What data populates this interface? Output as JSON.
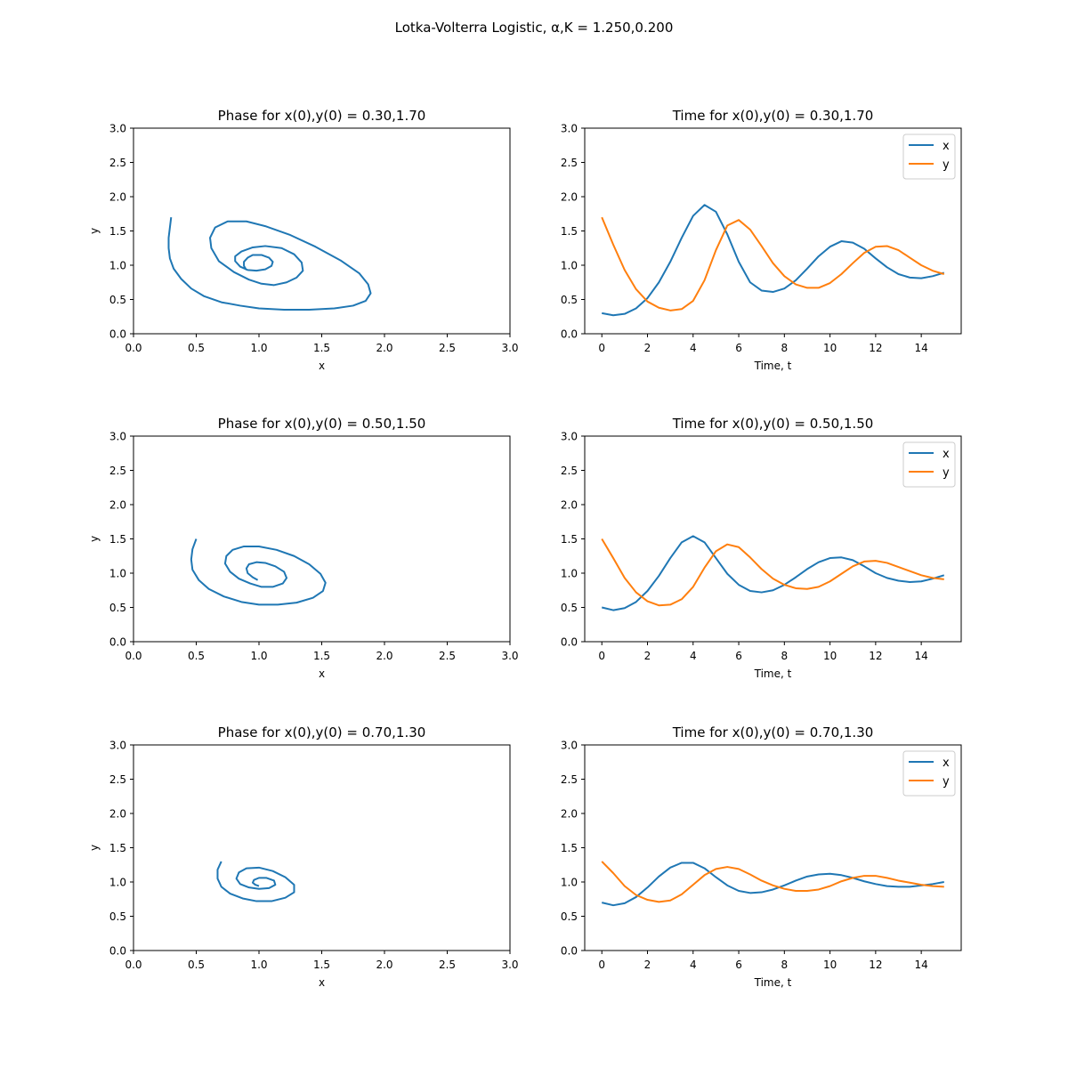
{
  "figure": {
    "suptitle": "Lotka-Volterra Logistic, α,K = 1.250,0.200",
    "colors": {
      "x": "#1f77b4",
      "y": "#ff7f0e"
    }
  },
  "chart_data": [
    {
      "type": "line",
      "title": "Phase for x(0),y(0) = 0.30,1.70",
      "xlabel": "x",
      "ylabel": "y",
      "xlim": [
        0,
        3
      ],
      "ylim": [
        0,
        3
      ],
      "xticks": [
        "0.0",
        "0.5",
        "1.0",
        "1.5",
        "2.0",
        "2.5",
        "3.0"
      ],
      "yticks": [
        "0.0",
        "0.5",
        "1.0",
        "1.5",
        "2.0",
        "2.5",
        "3.0"
      ],
      "grid": false,
      "series": [
        {
          "color": "#1f77b4",
          "x": [
            0.3,
            0.29,
            0.28,
            0.28,
            0.29,
            0.32,
            0.38,
            0.46,
            0.56,
            0.7,
            0.85,
            1.0,
            1.2,
            1.4,
            1.6,
            1.75,
            1.85,
            1.89,
            1.87,
            1.8,
            1.65,
            1.45,
            1.25,
            1.05,
            0.9,
            0.75,
            0.65,
            0.61,
            0.62,
            0.68,
            0.8,
            0.92,
            1.02,
            1.12,
            1.22,
            1.3,
            1.35,
            1.34,
            1.28,
            1.18,
            1.05,
            0.95,
            0.86,
            0.81,
            0.81,
            0.85,
            0.91,
            0.98,
            1.05,
            1.1,
            1.11,
            1.08,
            1.02,
            0.95,
            0.91,
            0.88,
            0.88,
            0.9
          ],
          "y": [
            1.7,
            1.55,
            1.4,
            1.25,
            1.1,
            0.95,
            0.8,
            0.66,
            0.55,
            0.46,
            0.41,
            0.37,
            0.35,
            0.35,
            0.37,
            0.41,
            0.48,
            0.59,
            0.72,
            0.88,
            1.07,
            1.27,
            1.44,
            1.57,
            1.64,
            1.64,
            1.55,
            1.4,
            1.25,
            1.06,
            0.9,
            0.79,
            0.73,
            0.71,
            0.75,
            0.82,
            0.92,
            1.04,
            1.16,
            1.25,
            1.28,
            1.26,
            1.2,
            1.13,
            1.06,
            0.98,
            0.93,
            0.92,
            0.94,
            0.99,
            1.05,
            1.11,
            1.15,
            1.15,
            1.11,
            1.05,
            0.99,
            0.93
          ]
        }
      ]
    },
    {
      "type": "line",
      "title": "Time for x(0),y(0) = 0.30,1.70",
      "xlabel": "Time, t",
      "ylabel": "",
      "xlim": [
        -0.75,
        15.75
      ],
      "ylim": [
        0,
        3
      ],
      "xticks": [
        "0",
        "2",
        "4",
        "6",
        "8",
        "10",
        "12",
        "14"
      ],
      "yticks": [
        "0.0",
        "0.5",
        "1.0",
        "1.5",
        "2.0",
        "2.5",
        "3.0"
      ],
      "grid": false,
      "legend": "top-right",
      "series": [
        {
          "name": "x",
          "color": "#1f77b4",
          "x": [
            0,
            0.5,
            1,
            1.5,
            2,
            2.5,
            3,
            3.5,
            4,
            4.5,
            5,
            5.5,
            6,
            6.5,
            7,
            7.5,
            8,
            8.5,
            9,
            9.5,
            10,
            10.5,
            11,
            11.5,
            12,
            12.5,
            13,
            13.5,
            14,
            14.5,
            15
          ],
          "y": [
            0.3,
            0.27,
            0.29,
            0.37,
            0.52,
            0.75,
            1.05,
            1.4,
            1.72,
            1.88,
            1.78,
            1.45,
            1.05,
            0.75,
            0.63,
            0.61,
            0.66,
            0.78,
            0.95,
            1.13,
            1.27,
            1.35,
            1.33,
            1.24,
            1.1,
            0.97,
            0.87,
            0.82,
            0.81,
            0.84,
            0.89
          ]
        },
        {
          "name": "y",
          "color": "#ff7f0e",
          "x": [
            0,
            0.5,
            1,
            1.5,
            2,
            2.5,
            3,
            3.5,
            4,
            4.5,
            5,
            5.5,
            6,
            6.5,
            7,
            7.5,
            8,
            8.5,
            9,
            9.5,
            10,
            10.5,
            11,
            11.5,
            12,
            12.5,
            13,
            13.5,
            14,
            14.5,
            15
          ],
          "y": [
            1.7,
            1.3,
            0.93,
            0.65,
            0.47,
            0.38,
            0.34,
            0.36,
            0.48,
            0.78,
            1.22,
            1.58,
            1.66,
            1.52,
            1.28,
            1.03,
            0.84,
            0.72,
            0.67,
            0.67,
            0.74,
            0.87,
            1.03,
            1.18,
            1.27,
            1.28,
            1.22,
            1.11,
            1.0,
            0.92,
            0.87
          ]
        }
      ]
    },
    {
      "type": "line",
      "title": "Phase for x(0),y(0) = 0.50,1.50",
      "xlabel": "x",
      "ylabel": "y",
      "xlim": [
        0,
        3
      ],
      "ylim": [
        0,
        3
      ],
      "xticks": [
        "0.0",
        "0.5",
        "1.0",
        "1.5",
        "2.0",
        "2.5",
        "3.0"
      ],
      "yticks": [
        "0.0",
        "0.5",
        "1.0",
        "1.5",
        "2.0",
        "2.5",
        "3.0"
      ],
      "grid": false,
      "series": [
        {
          "color": "#1f77b4",
          "x": [
            0.5,
            0.47,
            0.46,
            0.47,
            0.52,
            0.6,
            0.72,
            0.86,
            1.0,
            1.15,
            1.3,
            1.43,
            1.51,
            1.53,
            1.49,
            1.4,
            1.28,
            1.14,
            1.0,
            0.88,
            0.79,
            0.74,
            0.73,
            0.77,
            0.84,
            0.93,
            1.02,
            1.11,
            1.19,
            1.22,
            1.2,
            1.13,
            1.05,
            0.98,
            0.92,
            0.9,
            0.91,
            0.95,
            0.99
          ],
          "y": [
            1.5,
            1.35,
            1.2,
            1.05,
            0.9,
            0.77,
            0.66,
            0.58,
            0.54,
            0.54,
            0.57,
            0.64,
            0.74,
            0.86,
            0.99,
            1.13,
            1.25,
            1.34,
            1.39,
            1.39,
            1.34,
            1.25,
            1.14,
            1.02,
            0.92,
            0.85,
            0.8,
            0.8,
            0.85,
            0.93,
            1.02,
            1.1,
            1.15,
            1.16,
            1.13,
            1.07,
            1.0,
            0.94,
            0.9
          ]
        }
      ]
    },
    {
      "type": "line",
      "title": "Time for x(0),y(0) = 0.50,1.50",
      "xlabel": "Time, t",
      "ylabel": "",
      "xlim": [
        -0.75,
        15.75
      ],
      "ylim": [
        0,
        3
      ],
      "xticks": [
        "0",
        "2",
        "4",
        "6",
        "8",
        "10",
        "12",
        "14"
      ],
      "yticks": [
        "0.0",
        "0.5",
        "1.0",
        "1.5",
        "2.0",
        "2.5",
        "3.0"
      ],
      "grid": false,
      "legend": "top-right",
      "series": [
        {
          "name": "x",
          "color": "#1f77b4",
          "x": [
            0,
            0.5,
            1,
            1.5,
            2,
            2.5,
            3,
            3.5,
            4,
            4.5,
            5,
            5.5,
            6,
            6.5,
            7,
            7.5,
            8,
            8.5,
            9,
            9.5,
            10,
            10.5,
            11,
            11.5,
            12,
            12.5,
            13,
            13.5,
            14,
            14.5,
            15
          ],
          "y": [
            0.5,
            0.46,
            0.49,
            0.58,
            0.74,
            0.96,
            1.22,
            1.45,
            1.54,
            1.45,
            1.22,
            0.99,
            0.83,
            0.74,
            0.72,
            0.75,
            0.83,
            0.94,
            1.06,
            1.16,
            1.22,
            1.23,
            1.19,
            1.1,
            1.0,
            0.93,
            0.89,
            0.87,
            0.88,
            0.92,
            0.97
          ]
        },
        {
          "name": "y",
          "color": "#ff7f0e",
          "x": [
            0,
            0.5,
            1,
            1.5,
            2,
            2.5,
            3,
            3.5,
            4,
            4.5,
            5,
            5.5,
            6,
            6.5,
            7,
            7.5,
            8,
            8.5,
            9,
            9.5,
            10,
            10.5,
            11,
            11.5,
            12,
            12.5,
            13,
            13.5,
            14,
            14.5,
            15
          ],
          "y": [
            1.5,
            1.22,
            0.93,
            0.72,
            0.59,
            0.53,
            0.54,
            0.62,
            0.8,
            1.08,
            1.32,
            1.42,
            1.38,
            1.23,
            1.06,
            0.92,
            0.83,
            0.78,
            0.77,
            0.8,
            0.88,
            0.99,
            1.1,
            1.17,
            1.18,
            1.15,
            1.09,
            1.03,
            0.97,
            0.93,
            0.91
          ]
        }
      ]
    },
    {
      "type": "line",
      "title": "Phase for x(0),y(0) = 0.70,1.30",
      "xlabel": "x",
      "ylabel": "y",
      "xlim": [
        0,
        3
      ],
      "ylim": [
        0,
        3
      ],
      "xticks": [
        "0.0",
        "0.5",
        "1.0",
        "1.5",
        "2.0",
        "2.5",
        "3.0"
      ],
      "yticks": [
        "0.0",
        "0.5",
        "1.0",
        "1.5",
        "2.0",
        "2.5",
        "3.0"
      ],
      "grid": false,
      "series": [
        {
          "color": "#1f77b4",
          "x": [
            0.7,
            0.67,
            0.67,
            0.7,
            0.77,
            0.87,
            0.98,
            1.1,
            1.21,
            1.28,
            1.28,
            1.21,
            1.11,
            1.0,
            0.9,
            0.84,
            0.82,
            0.85,
            0.92,
            1.0,
            1.08,
            1.13,
            1.12,
            1.06,
            1.0,
            0.96,
            0.95,
            0.97,
            1.0
          ],
          "y": [
            1.3,
            1.18,
            1.05,
            0.93,
            0.83,
            0.76,
            0.72,
            0.72,
            0.77,
            0.85,
            0.96,
            1.07,
            1.16,
            1.21,
            1.2,
            1.14,
            1.05,
            0.97,
            0.92,
            0.9,
            0.91,
            0.96,
            1.02,
            1.06,
            1.06,
            1.03,
            0.99,
            0.96,
            0.94
          ]
        }
      ]
    },
    {
      "type": "line",
      "title": "Time for x(0),y(0) = 0.70,1.30",
      "xlabel": "Time, t",
      "ylabel": "",
      "xlim": [
        -0.75,
        15.75
      ],
      "ylim": [
        0,
        3
      ],
      "xticks": [
        "0",
        "2",
        "4",
        "6",
        "8",
        "10",
        "12",
        "14"
      ],
      "yticks": [
        "0.0",
        "0.5",
        "1.0",
        "1.5",
        "2.0",
        "2.5",
        "3.0"
      ],
      "grid": false,
      "legend": "top-right",
      "series": [
        {
          "name": "x",
          "color": "#1f77b4",
          "x": [
            0,
            0.5,
            1,
            1.5,
            2,
            2.5,
            3,
            3.5,
            4,
            4.5,
            5,
            5.5,
            6,
            6.5,
            7,
            7.5,
            8,
            8.5,
            9,
            9.5,
            10,
            10.5,
            11,
            11.5,
            12,
            12.5,
            13,
            13.5,
            14,
            14.5,
            15
          ],
          "y": [
            0.7,
            0.66,
            0.69,
            0.78,
            0.92,
            1.08,
            1.21,
            1.28,
            1.28,
            1.2,
            1.07,
            0.95,
            0.87,
            0.84,
            0.85,
            0.89,
            0.95,
            1.02,
            1.08,
            1.11,
            1.12,
            1.1,
            1.06,
            1.01,
            0.97,
            0.94,
            0.93,
            0.93,
            0.95,
            0.97,
            1.0
          ]
        },
        {
          "name": "y",
          "color": "#ff7f0e",
          "x": [
            0,
            0.5,
            1,
            1.5,
            2,
            2.5,
            3,
            3.5,
            4,
            4.5,
            5,
            5.5,
            6,
            6.5,
            7,
            7.5,
            8,
            8.5,
            9,
            9.5,
            10,
            10.5,
            11,
            11.5,
            12,
            12.5,
            13,
            13.5,
            14,
            14.5,
            15
          ],
          "y": [
            1.3,
            1.13,
            0.94,
            0.81,
            0.74,
            0.71,
            0.73,
            0.82,
            0.96,
            1.1,
            1.19,
            1.22,
            1.19,
            1.11,
            1.02,
            0.95,
            0.9,
            0.87,
            0.87,
            0.89,
            0.94,
            1.01,
            1.06,
            1.09,
            1.09,
            1.06,
            1.02,
            0.99,
            0.96,
            0.94,
            0.93
          ]
        }
      ]
    }
  ]
}
